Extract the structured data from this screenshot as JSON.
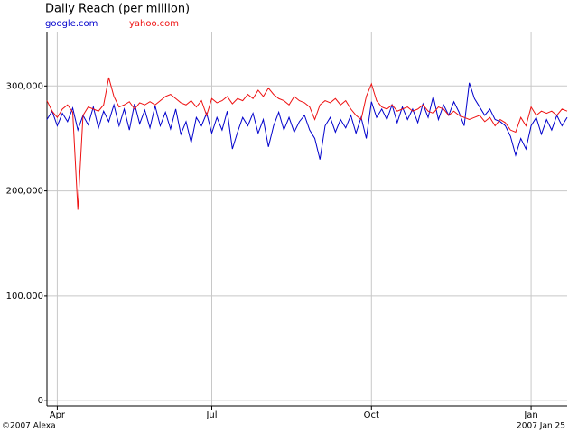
{
  "chart_data": {
    "type": "line",
    "title": "Daily Reach (per million)",
    "categories": [
      null,
      null,
      "Apr",
      null,
      null,
      null,
      null,
      null,
      null,
      null,
      null,
      null,
      null,
      null,
      null,
      null,
      null,
      null,
      null,
      null,
      null,
      null,
      null,
      null,
      null,
      null,
      null,
      null,
      null,
      null,
      null,
      null,
      "Jul",
      null,
      null,
      null,
      null,
      null,
      null,
      null,
      null,
      null,
      null,
      null,
      null,
      null,
      null,
      null,
      null,
      null,
      null,
      null,
      null,
      null,
      null,
      null,
      null,
      null,
      null,
      null,
      null,
      null,
      null,
      "Oct",
      null,
      null,
      null,
      null,
      null,
      null,
      null,
      null,
      null,
      null,
      null,
      null,
      null,
      null,
      null,
      null,
      null,
      null,
      null,
      null,
      null,
      null,
      null,
      null,
      null,
      null,
      null,
      null,
      null,
      null,
      "Jan",
      null,
      null,
      null,
      null,
      null,
      null,
      null
    ],
    "series": [
      {
        "name": "google.com",
        "color": "#0000cc",
        "values": [
          268000,
          276000,
          262000,
          274000,
          266000,
          279000,
          258000,
          272000,
          263000,
          280000,
          260000,
          276000,
          266000,
          282000,
          262000,
          278000,
          258000,
          283000,
          264000,
          277000,
          260000,
          281000,
          262000,
          275000,
          259000,
          278000,
          254000,
          266000,
          246000,
          270000,
          262000,
          274000,
          255000,
          270000,
          258000,
          276000,
          240000,
          256000,
          270000,
          262000,
          274000,
          255000,
          268000,
          242000,
          262000,
          275000,
          258000,
          270000,
          256000,
          266000,
          272000,
          258000,
          250000,
          230000,
          262000,
          270000,
          256000,
          268000,
          260000,
          272000,
          255000,
          270000,
          250000,
          285000,
          270000,
          278000,
          268000,
          282000,
          265000,
          280000,
          268000,
          278000,
          265000,
          283000,
          270000,
          290000,
          268000,
          282000,
          272000,
          285000,
          275000,
          262000,
          303000,
          288000,
          280000,
          272000,
          278000,
          268000,
          266000,
          262000,
          252000,
          234000,
          250000,
          240000,
          262000,
          270000,
          254000,
          268000,
          258000,
          272000,
          262000,
          270000
        ]
      },
      {
        "name": "yahoo.com",
        "color": "#ee1111",
        "values": [
          286000,
          276000,
          270000,
          278000,
          282000,
          275000,
          182000,
          272000,
          280000,
          278000,
          276000,
          282000,
          308000,
          290000,
          280000,
          282000,
          285000,
          278000,
          284000,
          282000,
          285000,
          282000,
          286000,
          290000,
          292000,
          288000,
          284000,
          282000,
          286000,
          280000,
          286000,
          272000,
          288000,
          284000,
          286000,
          290000,
          283000,
          288000,
          286000,
          292000,
          288000,
          296000,
          290000,
          298000,
          292000,
          288000,
          286000,
          282000,
          290000,
          286000,
          284000,
          280000,
          268000,
          282000,
          286000,
          284000,
          288000,
          282000,
          286000,
          278000,
          272000,
          268000,
          290000,
          302000,
          286000,
          280000,
          278000,
          282000,
          276000,
          278000,
          280000,
          276000,
          278000,
          282000,
          276000,
          274000,
          280000,
          278000,
          272000,
          276000,
          272000,
          270000,
          268000,
          270000,
          272000,
          266000,
          270000,
          262000,
          268000,
          265000,
          258000,
          256000,
          270000,
          262000,
          280000,
          272000,
          276000,
          274000,
          276000,
          272000,
          278000,
          276000
        ]
      }
    ],
    "ylim": [
      -5000,
      351000
    ],
    "yticks": [
      0,
      {
        "value": 100000,
        "label": "100,000"
      },
      {
        "value": 200000,
        "label": "200,000"
      },
      {
        "value": 300000,
        "label": "300,000"
      }
    ],
    "grid": true,
    "credit": "©2007 Alexa",
    "date_stamp": "2007 Jan 25"
  }
}
